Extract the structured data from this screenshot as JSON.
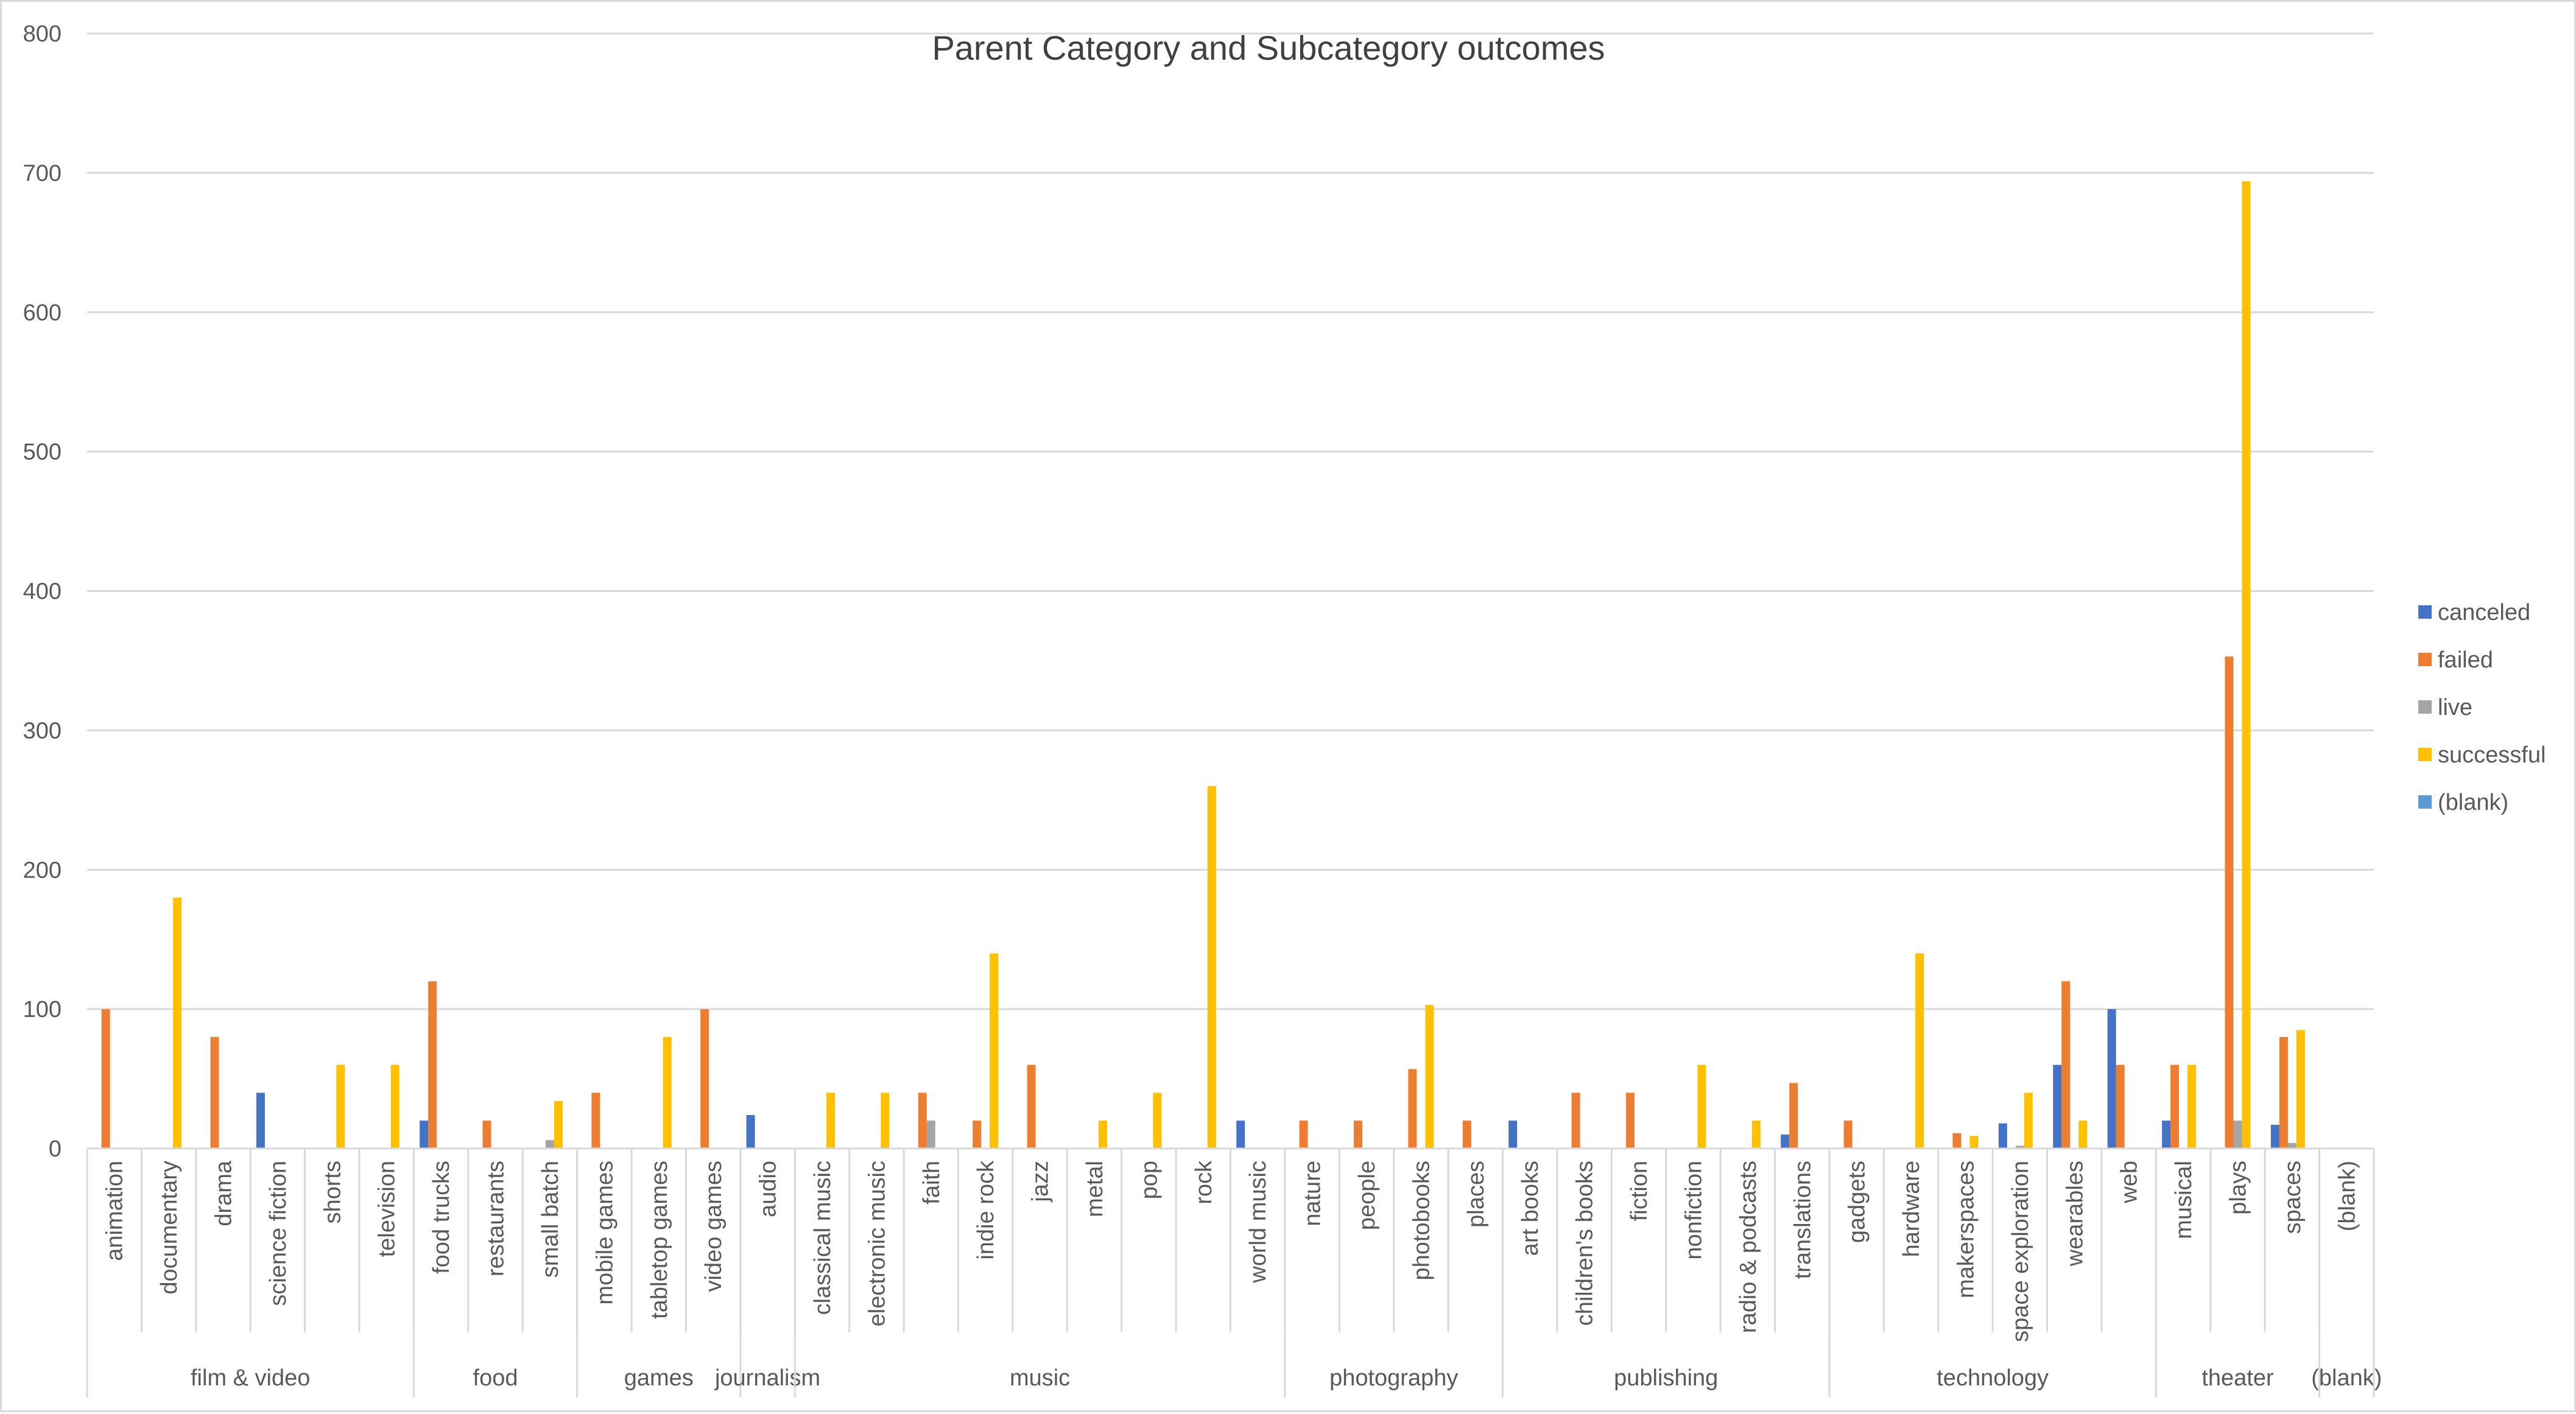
{
  "chart_data": {
    "type": "bar",
    "title": "Parent Category and Subcategory outcomes",
    "xlabel": "",
    "ylabel": "",
    "ylim": [
      0,
      800
    ],
    "yticks": [
      0,
      100,
      200,
      300,
      400,
      500,
      600,
      700,
      800
    ],
    "grid": true,
    "legend_position": "right",
    "groups": [
      {
        "name": "film & video",
        "categories": [
          "animation",
          "documentary",
          "drama",
          "science fiction",
          "shorts",
          "television"
        ]
      },
      {
        "name": "food",
        "categories": [
          "food trucks",
          "restaurants",
          "small batch"
        ]
      },
      {
        "name": "games",
        "categories": [
          "mobile games",
          "tabletop games",
          "video games"
        ]
      },
      {
        "name": "journalism",
        "categories": [
          "audio"
        ]
      },
      {
        "name": "music",
        "categories": [
          "classical music",
          "electronic music",
          "faith",
          "indie rock",
          "jazz",
          "metal",
          "pop",
          "rock",
          "world music"
        ]
      },
      {
        "name": "photography",
        "categories": [
          "nature",
          "people",
          "photobooks",
          "places"
        ]
      },
      {
        "name": "publishing",
        "categories": [
          "art books",
          "children's books",
          "fiction",
          "nonfiction",
          "radio & podcasts",
          "translations"
        ]
      },
      {
        "name": "technology",
        "categories": [
          "gadgets",
          "hardware",
          "makerspaces",
          "space exploration",
          "wearables",
          "web"
        ]
      },
      {
        "name": "theater",
        "categories": [
          "musical",
          "plays",
          "spaces"
        ]
      },
      {
        "name": "(blank)",
        "categories": [
          "(blank)"
        ]
      }
    ],
    "series": [
      {
        "name": "canceled",
        "color": "#4472c4",
        "values": [
          0,
          0,
          0,
          40,
          0,
          0,
          20,
          0,
          0,
          0,
          0,
          0,
          24,
          0,
          0,
          0,
          0,
          0,
          0,
          0,
          0,
          20,
          0,
          0,
          0,
          0,
          20,
          0,
          0,
          0,
          0,
          10,
          0,
          0,
          0,
          18,
          60,
          100,
          20,
          0,
          17,
          0
        ]
      },
      {
        "name": "failed",
        "color": "#ed7d31",
        "values": [
          100,
          0,
          80,
          0,
          0,
          0,
          120,
          20,
          0,
          40,
          0,
          100,
          0,
          0,
          0,
          40,
          20,
          60,
          0,
          0,
          0,
          0,
          20,
          20,
          57,
          20,
          0,
          40,
          40,
          0,
          0,
          47,
          20,
          0,
          11,
          0,
          120,
          60,
          60,
          353,
          80,
          0
        ]
      },
      {
        "name": "live",
        "color": "#a5a5a5",
        "values": [
          0,
          0,
          0,
          0,
          0,
          0,
          0,
          0,
          6,
          0,
          0,
          0,
          0,
          0,
          0,
          20,
          0,
          0,
          0,
          0,
          0,
          0,
          0,
          0,
          0,
          0,
          0,
          0,
          0,
          0,
          0,
          0,
          0,
          0,
          0,
          2,
          0,
          0,
          0,
          20,
          4,
          0
        ]
      },
      {
        "name": "successful",
        "color": "#ffc000",
        "values": [
          0,
          180,
          0,
          0,
          60,
          60,
          0,
          0,
          34,
          0,
          80,
          0,
          0,
          40,
          40,
          0,
          140,
          0,
          20,
          40,
          260,
          0,
          0,
          0,
          103,
          0,
          0,
          0,
          0,
          60,
          20,
          0,
          0,
          140,
          9,
          40,
          20,
          0,
          60,
          694,
          85,
          0
        ]
      },
      {
        "name": "(blank)",
        "color": "#5b9bd5",
        "values": [
          0,
          0,
          0,
          0,
          0,
          0,
          0,
          0,
          0,
          0,
          0,
          0,
          0,
          0,
          0,
          0,
          0,
          0,
          0,
          0,
          0,
          0,
          0,
          0,
          0,
          0,
          0,
          0,
          0,
          0,
          0,
          0,
          0,
          0,
          0,
          0,
          0,
          0,
          0,
          0,
          0,
          0
        ]
      }
    ]
  }
}
